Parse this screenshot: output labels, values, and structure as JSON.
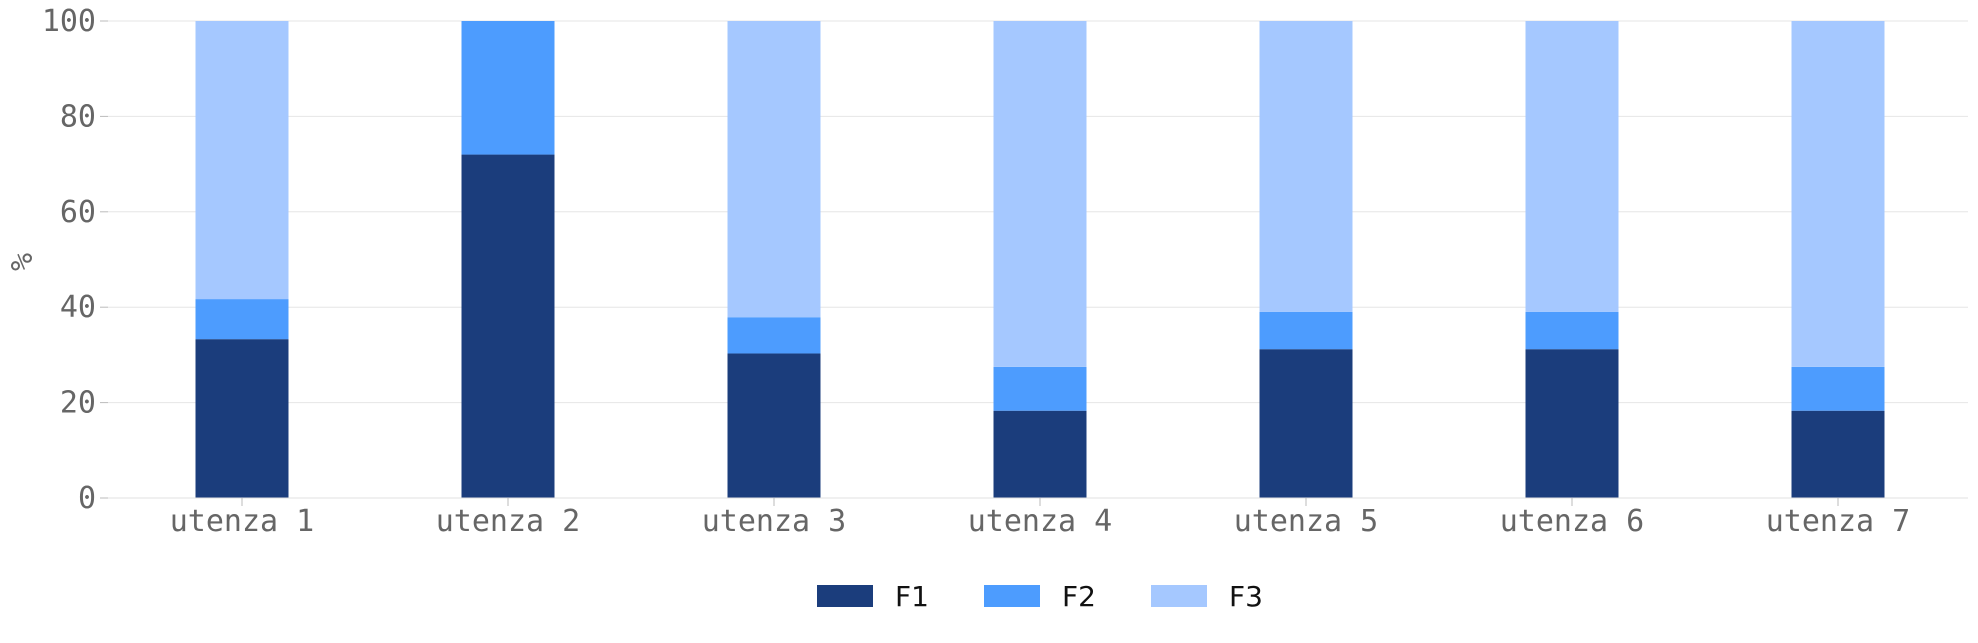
{
  "chart_data": {
    "type": "bar",
    "stacked": true,
    "title": "",
    "xlabel": "",
    "ylabel": "%",
    "ylim": [
      0,
      100
    ],
    "yticks": [
      0,
      20,
      40,
      60,
      80,
      100
    ],
    "grid": true,
    "legend_position": "bottom-center",
    "categories": [
      "utenza 1",
      "utenza 2",
      "utenza 3",
      "utenza 4",
      "utenza 5",
      "utenza 6",
      "utenza 7"
    ],
    "series": [
      {
        "name": "F1",
        "color": "#1b3d7c",
        "values": [
          33.3,
          72.0,
          30.3,
          18.3,
          31.2,
          31.2,
          18.3
        ]
      },
      {
        "name": "F2",
        "color": "#4d9cfe",
        "values": [
          8.4,
          28.0,
          7.6,
          9.2,
          7.8,
          7.8,
          9.2
        ]
      },
      {
        "name": "F3",
        "color": "#a5c8ff",
        "values": [
          58.3,
          0.0,
          62.1,
          72.5,
          61.0,
          61.0,
          72.5
        ]
      }
    ]
  }
}
